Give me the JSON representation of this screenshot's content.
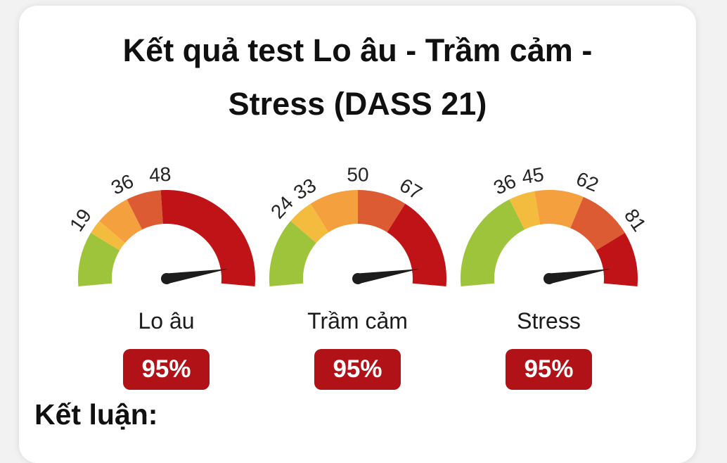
{
  "title": {
    "line1": "Kết quả test Lo âu - Trầm cảm -",
    "line2": "Stress (DASS 21)"
  },
  "conclusion_label": "Kết luận:",
  "colors": {
    "severity_green": "#9dc43b",
    "severity_yellow": "#f3bc3e",
    "severity_orange": "#f5a03f",
    "severity_orange_red": "#dc5b33",
    "severity_dark_red": "#bf1317",
    "badge_red": "#b11217",
    "needle_black": "#1c1c1c",
    "card_background": "#ffffff",
    "page_background": "#f2f2f2",
    "text_dark": "#101010"
  },
  "chart_data": [
    {
      "type": "gauge",
      "name": "Lo âu",
      "value_pct": 95,
      "value_label": "95%",
      "axis_range": [
        0,
        100
      ],
      "tick_labels": [
        19,
        36,
        48
      ],
      "segments": [
        {
          "from": 0,
          "to": 19,
          "color": "#9dc43b"
        },
        {
          "from": 19,
          "to": 24,
          "color": "#f3bc3e"
        },
        {
          "from": 24,
          "to": 36,
          "color": "#f5a03f"
        },
        {
          "from": 36,
          "to": 48,
          "color": "#dc5b33"
        },
        {
          "from": 48,
          "to": 100,
          "color": "#bf1317"
        }
      ]
    },
    {
      "type": "gauge",
      "name": "Trầm cảm",
      "value_pct": 95,
      "value_label": "95%",
      "axis_range": [
        0,
        100
      ],
      "tick_labels": [
        24,
        33,
        50,
        67
      ],
      "segments": [
        {
          "from": 0,
          "to": 24,
          "color": "#9dc43b"
        },
        {
          "from": 24,
          "to": 33,
          "color": "#f3bc3e"
        },
        {
          "from": 33,
          "to": 50,
          "color": "#f5a03f"
        },
        {
          "from": 50,
          "to": 67,
          "color": "#dc5b33"
        },
        {
          "from": 67,
          "to": 100,
          "color": "#bf1317"
        }
      ]
    },
    {
      "type": "gauge",
      "name": "Stress",
      "value_pct": 95,
      "value_label": "95%",
      "axis_range": [
        0,
        100
      ],
      "tick_labels": [
        36,
        45,
        62,
        81
      ],
      "segments": [
        {
          "from": 0,
          "to": 36,
          "color": "#9dc43b"
        },
        {
          "from": 36,
          "to": 45,
          "color": "#f3bc3e"
        },
        {
          "from": 45,
          "to": 62,
          "color": "#f5a03f"
        },
        {
          "from": 62,
          "to": 81,
          "color": "#dc5b33"
        },
        {
          "from": 81,
          "to": 100,
          "color": "#bf1317"
        }
      ]
    }
  ]
}
